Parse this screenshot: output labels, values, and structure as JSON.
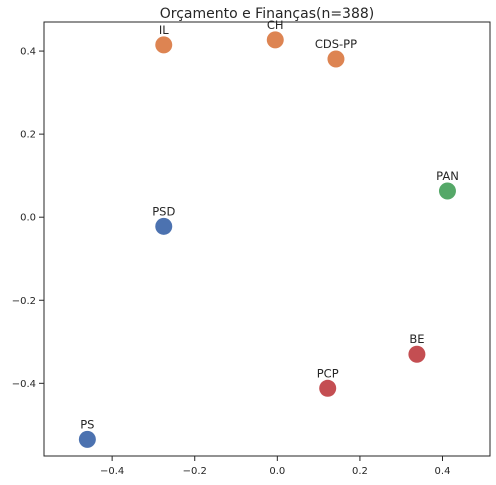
{
  "chart_data": {
    "type": "scatter",
    "title": "Orçamento e Finanças(n=388)",
    "xlabel": "",
    "ylabel": "",
    "xlim": [
      -0.565,
      0.515
    ],
    "ylim": [
      -0.575,
      0.47
    ],
    "xticks": [
      -0.4,
      -0.2,
      0.0,
      0.2,
      0.4
    ],
    "xtick_labels": [
      "−0.4",
      "−0.2",
      "0.0",
      "0.2",
      "0.4"
    ],
    "yticks": [
      -0.4,
      -0.2,
      0.0,
      0.2,
      0.4
    ],
    "ytick_labels": [
      "−0.4",
      "−0.2",
      "0.0",
      "0.2",
      "0.4"
    ],
    "grid": false,
    "points": [
      {
        "label": "IL",
        "x": -0.275,
        "y": 0.415,
        "color": "#dd8452"
      },
      {
        "label": "CH",
        "x": -0.005,
        "y": 0.427,
        "color": "#dd8452"
      },
      {
        "label": "CDS-PP",
        "x": 0.142,
        "y": 0.381,
        "color": "#dd8452"
      },
      {
        "label": "PAN",
        "x": 0.412,
        "y": 0.063,
        "color": "#55a868"
      },
      {
        "label": "PSD",
        "x": -0.275,
        "y": -0.022,
        "color": "#4c72b0"
      },
      {
        "label": "BE",
        "x": 0.338,
        "y": -0.33,
        "color": "#c44e52"
      },
      {
        "label": "PCP",
        "x": 0.122,
        "y": -0.412,
        "color": "#c44e52"
      },
      {
        "label": "PS",
        "x": -0.46,
        "y": -0.535,
        "color": "#4c72b0"
      }
    ]
  }
}
